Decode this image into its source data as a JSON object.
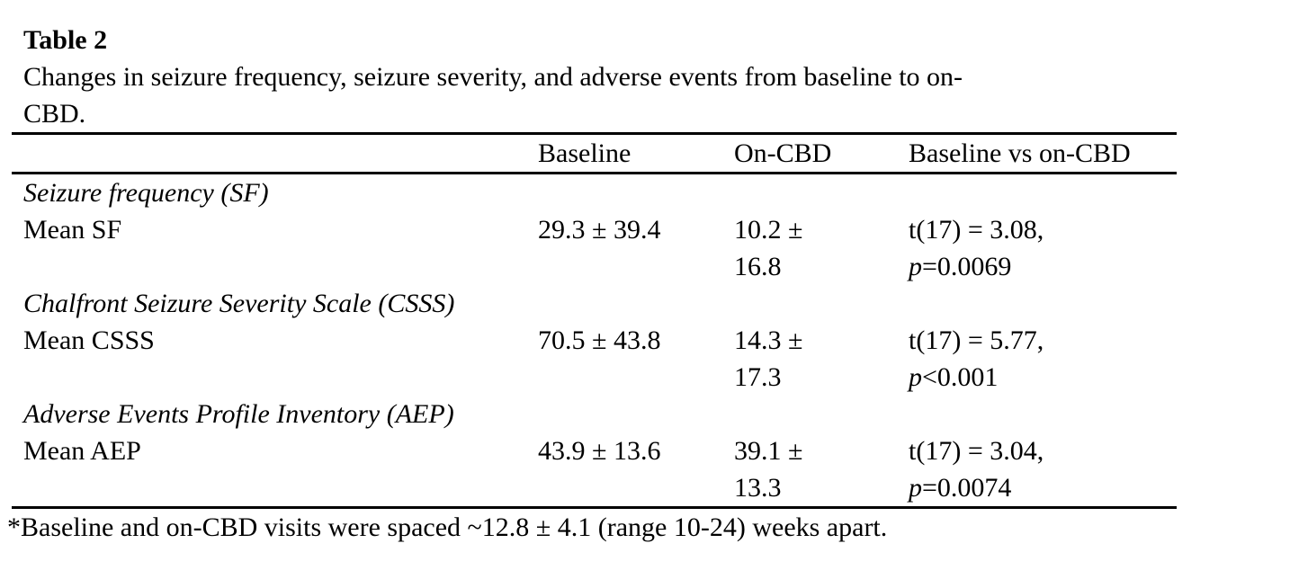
{
  "page": {
    "title": "Table 2",
    "caption_lines": [
      "Changes in seizure frequency, seizure severity, and adverse events from baseline to on-",
      "CBD."
    ],
    "footnote": "*Baseline and on-CBD visits were spaced ~12.8 ± 4.1 (range 10-24) weeks apart."
  },
  "table": {
    "header": {
      "baseline": "Baseline",
      "on_cbd": "On-CBD",
      "comparison": "Baseline vs on-CBD"
    },
    "sections": [
      {
        "heading": "Seizure frequency (SF)",
        "row": {
          "label": "Mean SF",
          "baseline": "29.3 ± 39.4",
          "on_cbd": "10.2 ± 16.8",
          "stat_t": "t(17) = 3.08,",
          "stat_p_symbol": "p",
          "stat_p_value": "=0.0069"
        }
      },
      {
        "heading": "Chalfront Seizure Severity Scale (CSSS)",
        "row": {
          "label": "Mean CSSS",
          "baseline": "70.5 ± 43.8",
          "on_cbd": "14.3 ± 17.3",
          "stat_t": "t(17) = 5.77,",
          "stat_p_symbol": "p",
          "stat_p_value": "<0.001"
        }
      },
      {
        "heading": "Adverse Events Profile Inventory (AEP)",
        "row": {
          "label": "Mean AEP",
          "baseline": "43.9 ± 13.6",
          "on_cbd": "39.1 ± 13.3",
          "stat_t": "t(17) = 3.04,",
          "stat_p_symbol": "p",
          "stat_p_value": "=0.0074"
        }
      }
    ]
  }
}
